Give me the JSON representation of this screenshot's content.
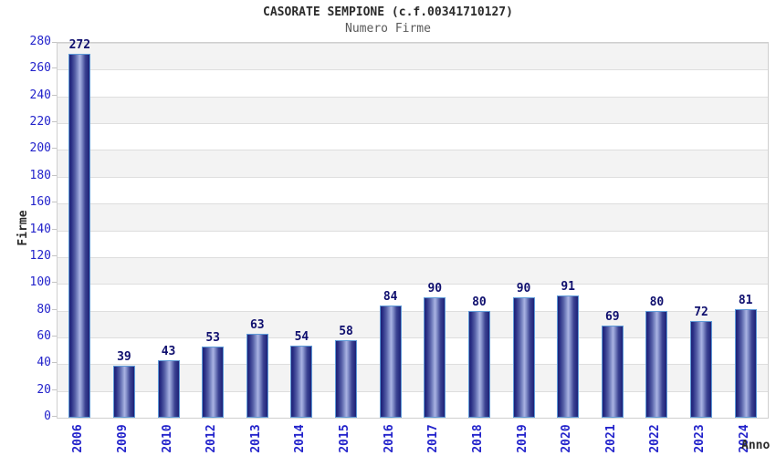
{
  "chart_data": {
    "type": "bar",
    "title": "CASORATE SEMPIONE (c.f.00341710127)",
    "subtitle": "Numero Firme",
    "xlabel": "Anno",
    "ylabel": "Firme",
    "categories": [
      "2006",
      "2009",
      "2010",
      "2012",
      "2013",
      "2014",
      "2015",
      "2016",
      "2017",
      "2018",
      "2019",
      "2020",
      "2021",
      "2022",
      "2023",
      "2024"
    ],
    "values": [
      272,
      39,
      43,
      53,
      63,
      54,
      58,
      84,
      90,
      80,
      90,
      91,
      69,
      80,
      72,
      81
    ],
    "ylim": [
      0,
      280
    ],
    "ytick_step": 20,
    "grid": "horizontal-bands-alternating",
    "legend": "none",
    "colors": {
      "tick_text": "#2323cb",
      "value_text": "#0f0f6e",
      "band_gray": "#f3f3f3",
      "grid_line": "#dedede",
      "tick_mark": "#c4c4c4",
      "plot_border": "#cfcfcf",
      "bar_border": "#5f9bd8",
      "bar_dark": "#1d2177",
      "bar_mid": "#8793cc",
      "bar_light": "#aab3e3",
      "title_text": "#2b2b2b",
      "subtitle_text": "#5a5a5a"
    }
  }
}
